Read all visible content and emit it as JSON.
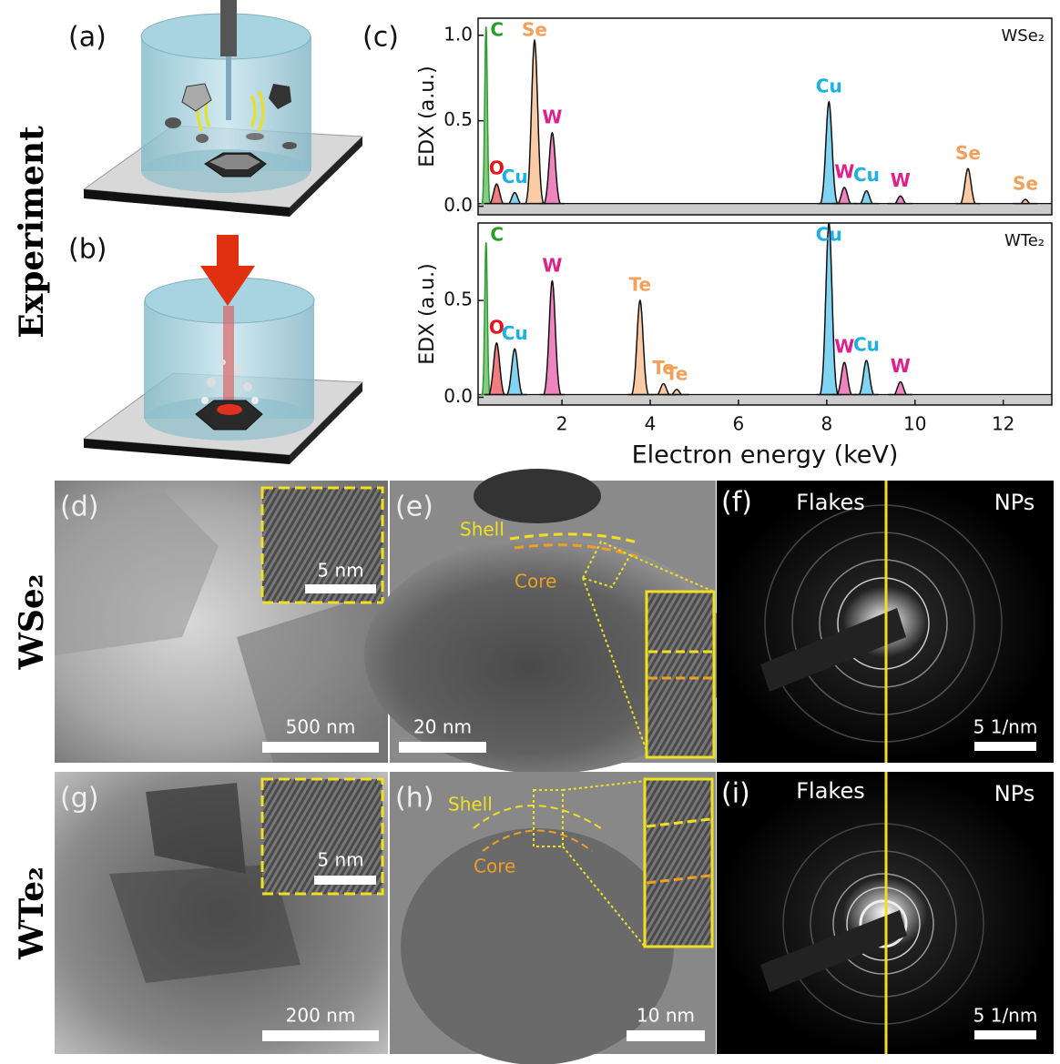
{
  "panels": {
    "a": "(a)",
    "b": "(b)",
    "c": "(c)",
    "d": "(d)",
    "e": "(e)",
    "f": "(f)",
    "g": "(g)",
    "h": "(h)",
    "i": "(i)"
  },
  "side_labels": {
    "experiment": "Experiment",
    "top_row": "WSe₂",
    "bottom_row": "WTe₂"
  },
  "chart_data": [
    {
      "type": "spectrum",
      "label": "WSe₂",
      "y_label": "EDX (a.u.)",
      "xlim": [
        0.1,
        13.1
      ],
      "ylim": [
        -0.05,
        1.1
      ],
      "yticks": [
        {
          "value": 0,
          "label": "0.0"
        },
        0.5,
        {
          "value": 1,
          "label": "1.0"
        }
      ],
      "peaks": [
        {
          "label": "C",
          "energy": 0.28,
          "height": 1.05,
          "color": "#2a9d2a"
        },
        {
          "label": "O",
          "energy": 0.52,
          "height": 0.13,
          "color": "#e8121a"
        },
        {
          "label": "Cu",
          "energy": 0.93,
          "height": 0.08,
          "color": "#1ab0e8"
        },
        {
          "label": "Se",
          "energy": 1.38,
          "height": 0.97,
          "color": "#f5a05a"
        },
        {
          "label": "W",
          "energy": 1.78,
          "height": 0.43,
          "color": "#e0208a"
        },
        {
          "label": "Cu",
          "energy": 8.05,
          "height": 0.61,
          "color": "#1ab0e8"
        },
        {
          "label": "W",
          "energy": 8.4,
          "height": 0.11,
          "color": "#e0208a"
        },
        {
          "label": "Cu",
          "energy": 8.9,
          "height": 0.09,
          "color": "#1ab0e8"
        },
        {
          "label": "W",
          "energy": 9.67,
          "height": 0.06,
          "color": "#e0208a"
        },
        {
          "label": "Se",
          "energy": 11.2,
          "height": 0.22,
          "color": "#f5a05a"
        },
        {
          "label": "Se",
          "energy": 12.5,
          "height": 0.04,
          "color": "#f5a05a"
        }
      ]
    },
    {
      "type": "spectrum",
      "label": "WTe₂",
      "y_label": "EDX (a.u.)",
      "x_label": "Electron energy (keV)",
      "xlim": [
        0.1,
        13.1
      ],
      "ylim": [
        -0.04,
        0.9
      ],
      "xticks": [
        2,
        4,
        6,
        8,
        10,
        12
      ],
      "yticks": [
        {
          "value": 0,
          "label": "0.0"
        },
        0.5
      ],
      "peaks": [
        {
          "label": "C",
          "energy": 0.28,
          "height": 0.8,
          "color": "#2a9d2a"
        },
        {
          "label": "O",
          "energy": 0.52,
          "height": 0.28,
          "color": "#e8121a"
        },
        {
          "label": "Cu",
          "energy": 0.93,
          "height": 0.25,
          "color": "#1ab0e8"
        },
        {
          "label": "W",
          "energy": 1.78,
          "height": 0.6,
          "color": "#e0208a"
        },
        {
          "label": "Te",
          "energy": 3.77,
          "height": 0.5,
          "color": "#f5a05a"
        },
        {
          "label": "Te",
          "energy": 4.3,
          "height": 0.07,
          "color": "#f5a05a"
        },
        {
          "label": "Te",
          "energy": 4.6,
          "height": 0.04,
          "color": "#f5a05a"
        },
        {
          "label": "Cu",
          "energy": 8.05,
          "height": 0.9,
          "color": "#1ab0e8"
        },
        {
          "label": "W",
          "energy": 8.4,
          "height": 0.18,
          "color": "#e0208a"
        },
        {
          "label": "Cu",
          "energy": 8.9,
          "height": 0.19,
          "color": "#1ab0e8"
        },
        {
          "label": "W",
          "energy": 9.67,
          "height": 0.08,
          "color": "#e0208a"
        }
      ]
    }
  ],
  "images": {
    "d": {
      "scale": "500 nm",
      "inset_scale": "5 nm"
    },
    "e": {
      "scale": "20 nm",
      "shell": "Shell",
      "core": "Core"
    },
    "f": {
      "left": "Flakes",
      "right": "NPs",
      "scale": "5 1/nm"
    },
    "g": {
      "scale": "200 nm",
      "inset_scale": "5 nm"
    },
    "h": {
      "scale": "10 nm",
      "shell": "Shell",
      "core": "Core"
    },
    "i": {
      "left": "Flakes",
      "right": "NPs",
      "scale": "5 1/nm"
    }
  }
}
